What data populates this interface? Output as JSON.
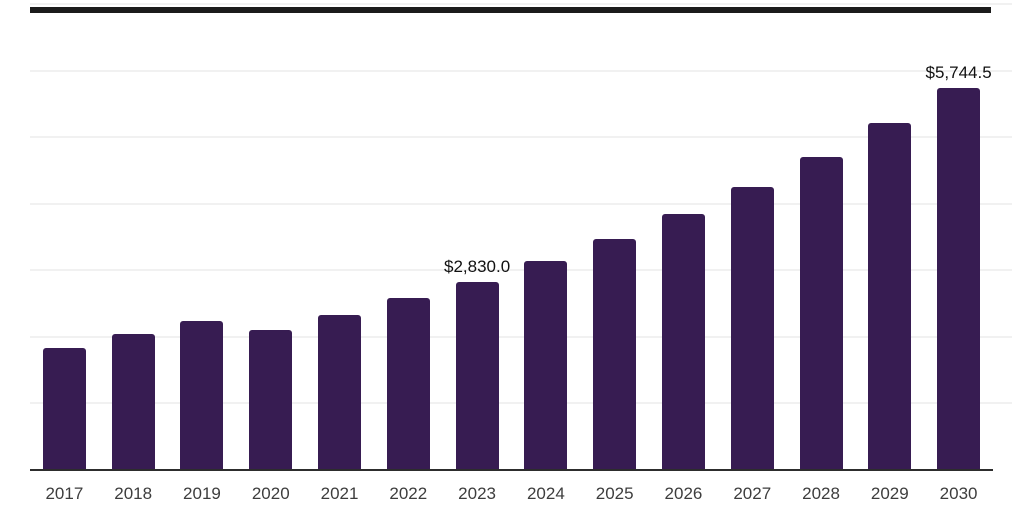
{
  "chart_data": {
    "type": "bar",
    "title": "",
    "xlabel": "",
    "ylabel": "",
    "categories": [
      "2017",
      "2018",
      "2019",
      "2020",
      "2021",
      "2022",
      "2023",
      "2024",
      "2025",
      "2026",
      "2027",
      "2028",
      "2029",
      "2030"
    ],
    "values": [
      1830,
      2040,
      2240,
      2100,
      2330,
      2580,
      2830,
      3140,
      3470,
      3850,
      4250,
      4700,
      5210,
      5744.5
    ],
    "data_labels": [
      {
        "category": "2023",
        "text": "$2,830.0"
      },
      {
        "category": "2030",
        "text": "$5,744.5"
      }
    ],
    "ylim": [
      0,
      7000
    ],
    "gridline_step": 1000,
    "grid": "horizontal-only",
    "legend": "none",
    "y_tick_labels_visible": false,
    "colors": {
      "bar": "#371c52",
      "background": "#ffffff",
      "gridline": "#f1f1f1",
      "axis_line": "#2d2d2d",
      "plot_top_border": "#1b1b1b",
      "tick_label": "#3d3d3d",
      "data_label": "#111111"
    }
  }
}
